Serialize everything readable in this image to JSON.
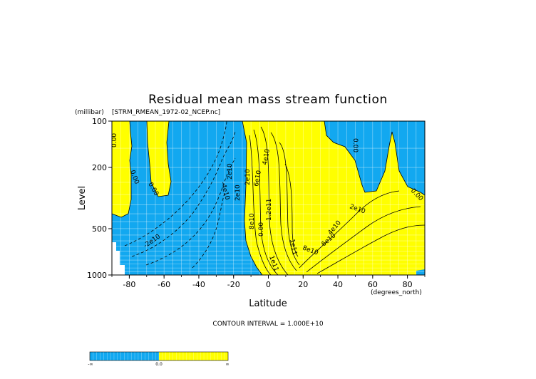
{
  "chart_data": {
    "type": "heatmap",
    "title": "Residual mean mass stream function",
    "source_label": "[STRM_RMEAN_1972-02_NCEP.nc]",
    "xlabel": "Latitude",
    "x_unit": "(degrees_north)",
    "ylabel": "Level",
    "y_unit": "(millibar)",
    "xlim": [
      -90,
      90
    ],
    "ylim": [
      1000,
      100
    ],
    "y_scale": "log",
    "x_ticks": [
      -80,
      -60,
      -40,
      -20,
      0,
      20,
      40,
      60,
      80
    ],
    "x_tick_labels": [
      "-80",
      "-60",
      "-40",
      "-20",
      "0",
      "20",
      "40",
      "60",
      "80"
    ],
    "y_ticks": [
      100,
      200,
      500,
      1000
    ],
    "y_tick_labels": [
      "100",
      "200",
      "500",
      "1000"
    ],
    "grid": true,
    "contour_interval_text": "CONTOUR INTERVAL = 1.000E+10",
    "contour_labels": [
      "0.00",
      "0.00",
      "0.00",
      "-4e10",
      "-2e10",
      "2e10",
      "2e10",
      "2e10",
      "4e10",
      "6e10",
      "8e10",
      "0.00",
      "1.2e11",
      "1e11",
      "8e10",
      "6e10",
      "4e10",
      "2e10",
      "0.00",
      "0.00",
      "1e11"
    ],
    "colors": {
      "negative": "#12a8f0",
      "positive": "#ffff00",
      "missing": "#ffffff"
    },
    "colorbar": {
      "labels": [
        "-∞",
        "0.0",
        "∞"
      ]
    }
  }
}
